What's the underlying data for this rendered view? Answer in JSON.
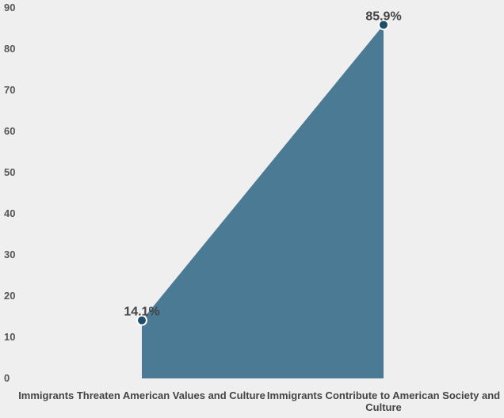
{
  "chart_data": {
    "type": "area",
    "title": "",
    "xlabel": "",
    "ylabel": "",
    "categories": [
      [
        "Immigrants Threaten American Values and Culture"
      ],
      [
        "Immigrants Contribute to American Society and",
        "Culture"
      ]
    ],
    "series": [
      {
        "values": [
          14.1,
          85.9
        ],
        "data_labels": [
          "14.1%",
          "85.9%"
        ]
      }
    ],
    "ylim": [
      0,
      90
    ],
    "yticks": [
      "0",
      "10",
      "20",
      "30",
      "40",
      "50",
      "60",
      "70",
      "80",
      "90"
    ],
    "grid": false,
    "legend": "none",
    "colors": {
      "area_fill": "#4a7a94",
      "marker_fill": "#1f4e6b",
      "marker_stroke": "#ffffff",
      "background": "#efefef"
    }
  }
}
